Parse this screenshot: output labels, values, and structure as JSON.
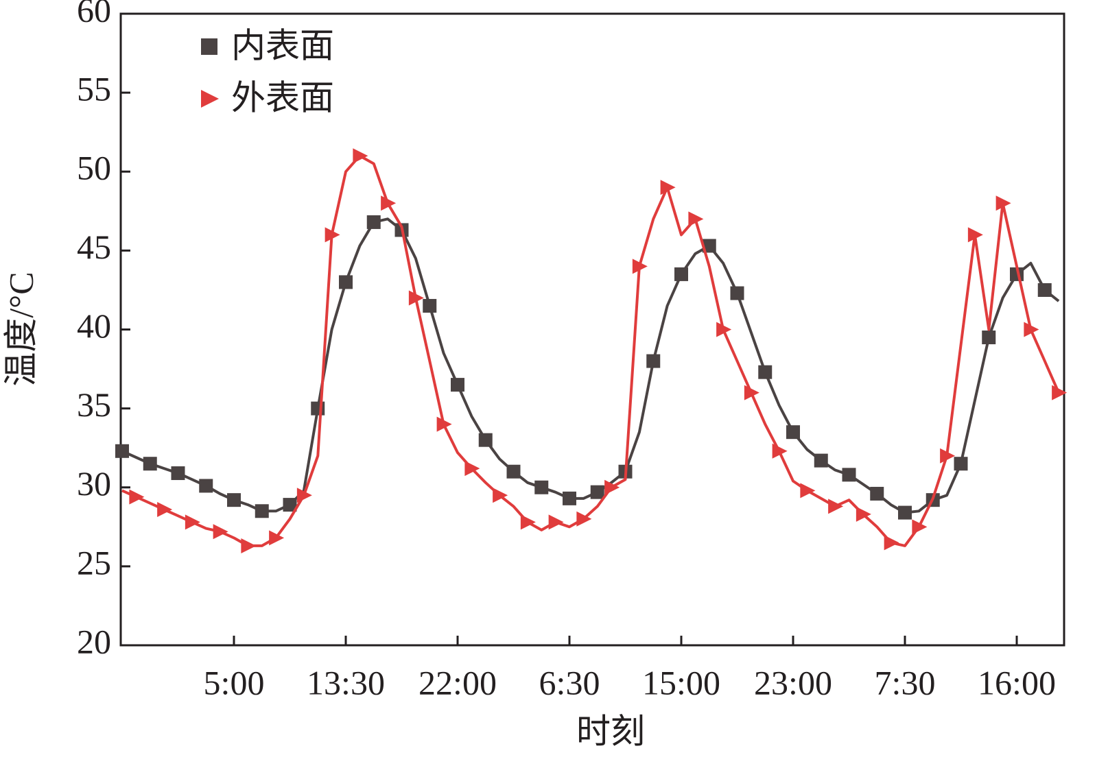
{
  "chart_data": {
    "type": "line",
    "x_label": "时刻",
    "y_label": "温度/°C",
    "categories": [
      null,
      null,
      null,
      null,
      null,
      null,
      null,
      null,
      "5:00",
      null,
      null,
      null,
      null,
      null,
      null,
      null,
      "13:30",
      null,
      null,
      null,
      null,
      null,
      null,
      null,
      "22:00",
      null,
      null,
      null,
      null,
      null,
      null,
      null,
      "6:30",
      null,
      null,
      null,
      null,
      null,
      null,
      null,
      "15:00",
      null,
      null,
      null,
      null,
      null,
      null,
      null,
      "23:00",
      null,
      null,
      null,
      null,
      null,
      null,
      null,
      "7:30",
      null,
      null,
      null,
      null,
      null,
      null,
      null,
      "16:00",
      null,
      null,
      null
    ],
    "series": [
      {
        "name": "内表面",
        "color": "#4a4343",
        "marker": "square",
        "values": [
          32.3,
          31.9,
          31.5,
          31.2,
          30.9,
          30.5,
          30.1,
          29.6,
          29.2,
          28.9,
          28.5,
          28.5,
          28.9,
          29.8,
          35,
          40,
          43,
          45.3,
          46.8,
          47,
          46.3,
          44.5,
          41.5,
          38.5,
          36.5,
          34.5,
          33,
          31.8,
          31,
          30.3,
          30,
          29.7,
          29.3,
          29.3,
          29.7,
          30.3,
          31,
          33.5,
          38,
          41.5,
          43.5,
          44.8,
          45.3,
          44.2,
          42.3,
          39.8,
          37.3,
          35.2,
          33.5,
          32.4,
          31.7,
          31.1,
          30.8,
          30.2,
          29.6,
          28.9,
          28.4,
          28.5,
          29.2,
          29.5,
          31.5,
          35.5,
          39.5,
          42,
          43.5,
          44.2,
          42.5,
          41.8
        ]
      },
      {
        "name": "外表面",
        "color": "#e03c3c",
        "marker": "triangle",
        "values": [
          29.8,
          29.4,
          29,
          28.6,
          28.2,
          27.8,
          27.4,
          27.2,
          26.8,
          26.3,
          26.3,
          26.8,
          28,
          29.5,
          32,
          46,
          50,
          51,
          50.5,
          48,
          46.5,
          42,
          38,
          34,
          32.2,
          31.2,
          30.3,
          29.5,
          28.8,
          27.8,
          27.3,
          27.8,
          27.5,
          28,
          28.8,
          30,
          30.5,
          44,
          47,
          49,
          46,
          47,
          44,
          40,
          38,
          36,
          34,
          32.3,
          30.4,
          29.8,
          29.3,
          28.8,
          29.2,
          28.3,
          27.5,
          26.5,
          26.3,
          27.5,
          29.3,
          32,
          39,
          46,
          40,
          48,
          44,
          40,
          38,
          36
        ]
      }
    ],
    "ylim": [
      20,
      60
    ],
    "yticks": [
      20,
      25,
      30,
      35,
      40,
      45,
      50,
      55,
      60
    ],
    "legend": "top-left",
    "grid": false
  }
}
